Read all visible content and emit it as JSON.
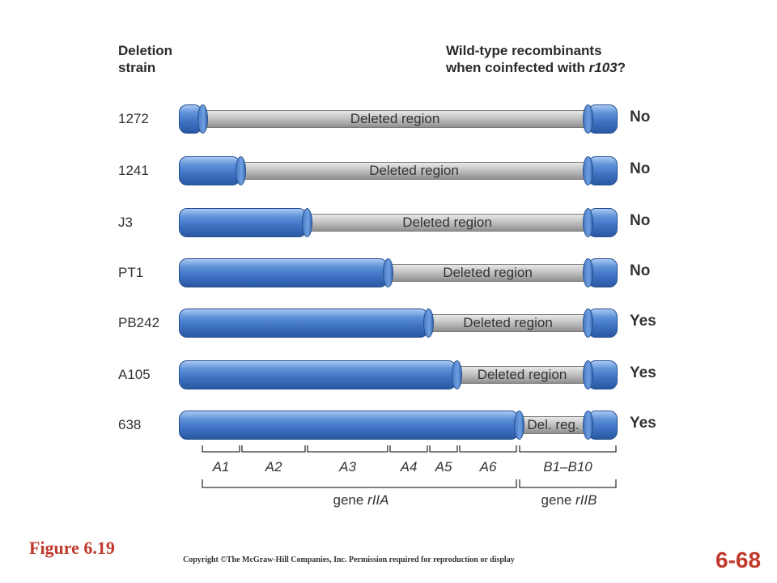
{
  "header": {
    "left_line1": "Deletion",
    "left_line2": "strain",
    "right_line1": "Wild-type recombinants",
    "right_line2_pre": "when coinfected with ",
    "right_line2_em": "r103",
    "right_line2_post": "?"
  },
  "rows": [
    {
      "strain": "1272",
      "deleted_label": "Deleted region",
      "answer": "No"
    },
    {
      "strain": "1241",
      "deleted_label": "Deleted region",
      "answer": "No"
    },
    {
      "strain": "J3",
      "deleted_label": "Deleted region",
      "answer": "No"
    },
    {
      "strain": "PT1",
      "deleted_label": "Deleted region",
      "answer": "No"
    },
    {
      "strain": "PB242",
      "deleted_label": "Deleted region",
      "answer": "Yes"
    },
    {
      "strain": "A105",
      "deleted_label": "Deleted region",
      "answer": "Yes"
    },
    {
      "strain": "638",
      "deleted_label": "Del. reg.",
      "answer": "Yes"
    }
  ],
  "segments": [
    "A1",
    "A2",
    "A3",
    "A4",
    "A5",
    "A6",
    "B1–B10"
  ],
  "genes": {
    "rIIA_pre": "gene ",
    "rIIA_em": "rIIA",
    "rIIB_pre": "gene ",
    "rIIB_em": "rIIB"
  },
  "footer": {
    "figure": "Figure 6.19",
    "copyright": "Copyright ©The McGraw-Hill Companies, Inc. Permission required for reproduction or display",
    "slide_number": "6-68"
  },
  "colors": {
    "intact": "#3e73c4",
    "deleted": "#b2b2b2",
    "accent": "#c0392b"
  }
}
